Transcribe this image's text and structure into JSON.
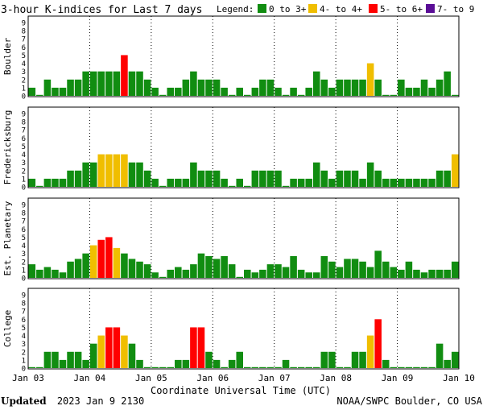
{
  "title": "3-hour K-indices for Last 7 days",
  "legend": {
    "label": "Legend:",
    "items": [
      {
        "label": "0 to 3+",
        "color": "#118d11"
      },
      {
        "label": "4- to 4+",
        "color": "#f0be00"
      },
      {
        "label": "5- to 6+",
        "color": "#ff0000"
      },
      {
        "label": "7- to 9",
        "color": "#5a0d96"
      }
    ]
  },
  "footer": {
    "updated_label": "Updated",
    "updated_value": "2023 Jan  9 2130",
    "source": "NOAA/SWPC Boulder, CO USA"
  },
  "chart_data": {
    "type": "bar",
    "xlabel": "Coordinate Universal Time (UTC)",
    "x_tick_labels": [
      "Jan 03",
      "Jan 04",
      "Jan 05",
      "Jan 06",
      "Jan 07",
      "Jan 08",
      "Jan 09",
      "Jan 10"
    ],
    "ylim": [
      0,
      9
    ],
    "y_ticks": [
      0,
      1,
      2,
      3,
      4,
      5,
      6,
      7,
      8,
      9
    ],
    "bins_per_day": 8,
    "days": 7,
    "series": [
      {
        "name": "Boulder",
        "values": [
          1,
          0,
          2,
          1,
          1,
          2,
          2,
          3,
          3,
          3,
          3,
          3,
          5,
          3,
          3,
          2,
          1,
          0,
          1,
          1,
          2,
          3,
          2,
          2,
          2,
          1,
          0,
          1,
          0,
          1,
          2,
          2,
          1,
          0,
          1,
          0,
          1,
          3,
          2,
          1,
          2,
          2,
          2,
          2,
          4,
          2,
          0,
          0,
          2,
          1,
          1,
          2,
          1,
          2,
          3,
          0
        ]
      },
      {
        "name": "Fredericksburg",
        "values": [
          1,
          0,
          1,
          1,
          1,
          2,
          2,
          3,
          3,
          4,
          4,
          4,
          4,
          3,
          3,
          2,
          1,
          0,
          1,
          1,
          1,
          3,
          2,
          2,
          2,
          1,
          0,
          1,
          0,
          2,
          2,
          2,
          2,
          0,
          1,
          1,
          1,
          3,
          2,
          1,
          2,
          2,
          2,
          1,
          3,
          2,
          1,
          1,
          1,
          1,
          1,
          1,
          1,
          2,
          2,
          4,
          0
        ]
      },
      {
        "name": "Est. Planetary",
        "values": [
          1.67,
          1,
          1.33,
          1,
          0.67,
          2,
          2.33,
          3,
          4,
          4.67,
          5,
          3.67,
          3,
          2.33,
          2,
          1.67,
          0.67,
          0,
          1,
          1.33,
          1,
          1.67,
          3,
          2.67,
          2.33,
          2.67,
          1.67,
          0,
          1,
          0.67,
          1,
          1.67,
          1.67,
          1.33,
          2.67,
          1,
          0.67,
          0.67,
          2.67,
          2,
          1.33,
          2.33,
          2.33,
          2,
          1.33,
          3.33,
          2,
          1.33,
          1,
          2,
          1,
          0.67,
          1,
          1,
          1,
          2,
          2.33
        ]
      },
      {
        "name": "College",
        "values": [
          0,
          0,
          2,
          2,
          1,
          2,
          2,
          1,
          3,
          4,
          5,
          5,
          4,
          3,
          1,
          0,
          0,
          0,
          0,
          1,
          1,
          5,
          5,
          2,
          1,
          0,
          1,
          2,
          0,
          0,
          0,
          0,
          0,
          1,
          0,
          0,
          0,
          0,
          2,
          2,
          0,
          0,
          2,
          2,
          4,
          6,
          1,
          0,
          0,
          0,
          0,
          0,
          0,
          3,
          1,
          2,
          0
        ]
      }
    ]
  }
}
